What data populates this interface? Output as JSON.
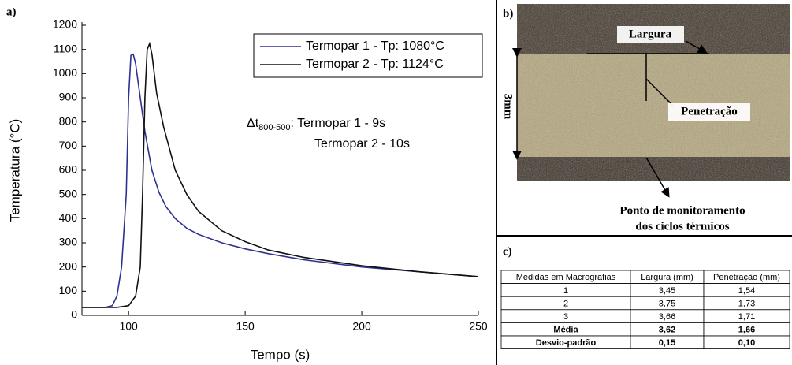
{
  "panel_labels": [
    "a)",
    "b)",
    "c)"
  ],
  "chart_data": {
    "type": "line",
    "xlabel": "Tempo (s)",
    "ylabel": "Temperatura (°C)",
    "xlim": [
      80,
      250
    ],
    "xticks": [
      100,
      150,
      200,
      250
    ],
    "ylim": [
      0,
      1200
    ],
    "yticks": [
      0,
      100,
      200,
      300,
      400,
      500,
      600,
      700,
      800,
      900,
      1000,
      1100,
      1200
    ],
    "legend": "upper right",
    "series": [
      {
        "name": "Termopar 1 - Tp: 1080°C",
        "color": "#2e3192",
        "x": [
          80,
          90,
          93,
          95,
          97,
          99,
          100,
          101,
          102,
          103,
          105,
          107,
          110,
          113,
          116,
          120,
          125,
          130,
          140,
          150,
          160,
          175,
          200,
          225,
          250
        ],
        "values": [
          33,
          33,
          40,
          80,
          200,
          500,
          900,
          1075,
          1080,
          1040,
          900,
          760,
          600,
          510,
          450,
          400,
          360,
          335,
          300,
          275,
          255,
          230,
          200,
          180,
          160
        ]
      },
      {
        "name": "Termopar 2 - Tp: 1124°C",
        "color": "#111111",
        "x": [
          80,
          95,
          100,
          103,
          105,
          106,
          107,
          108,
          109,
          110,
          112,
          115,
          120,
          125,
          130,
          140,
          150,
          160,
          175,
          200,
          225,
          250
        ],
        "values": [
          33,
          33,
          40,
          80,
          200,
          500,
          900,
          1100,
          1124,
          1080,
          920,
          780,
          600,
          500,
          430,
          350,
          305,
          270,
          240,
          205,
          180,
          160
        ]
      }
    ],
    "annotation": {
      "symbol": "Δt",
      "subscript": "800-500",
      "line1": ": Termopar 1 - 9s",
      "line2": "Termopar 2 - 10s"
    }
  },
  "macrograph": {
    "width_label": "Largura",
    "penetration_label": "Penetração",
    "scale_label": "3mm",
    "caption": [
      "Ponto de monitoramento",
      "dos ciclos térmicos"
    ]
  },
  "table": {
    "header": [
      "Medidas em Macrografias",
      "Largura (mm)",
      "Penetração (mm)"
    ],
    "rows": [
      [
        "1",
        "3,45",
        "1,54"
      ],
      [
        "2",
        "3,75",
        "1,73"
      ],
      [
        "3",
        "3,66",
        "1,71"
      ],
      [
        "Média",
        "3,62",
        "1,66"
      ],
      [
        "Desvio-padrão",
        "0,15",
        "0,10"
      ]
    ]
  }
}
